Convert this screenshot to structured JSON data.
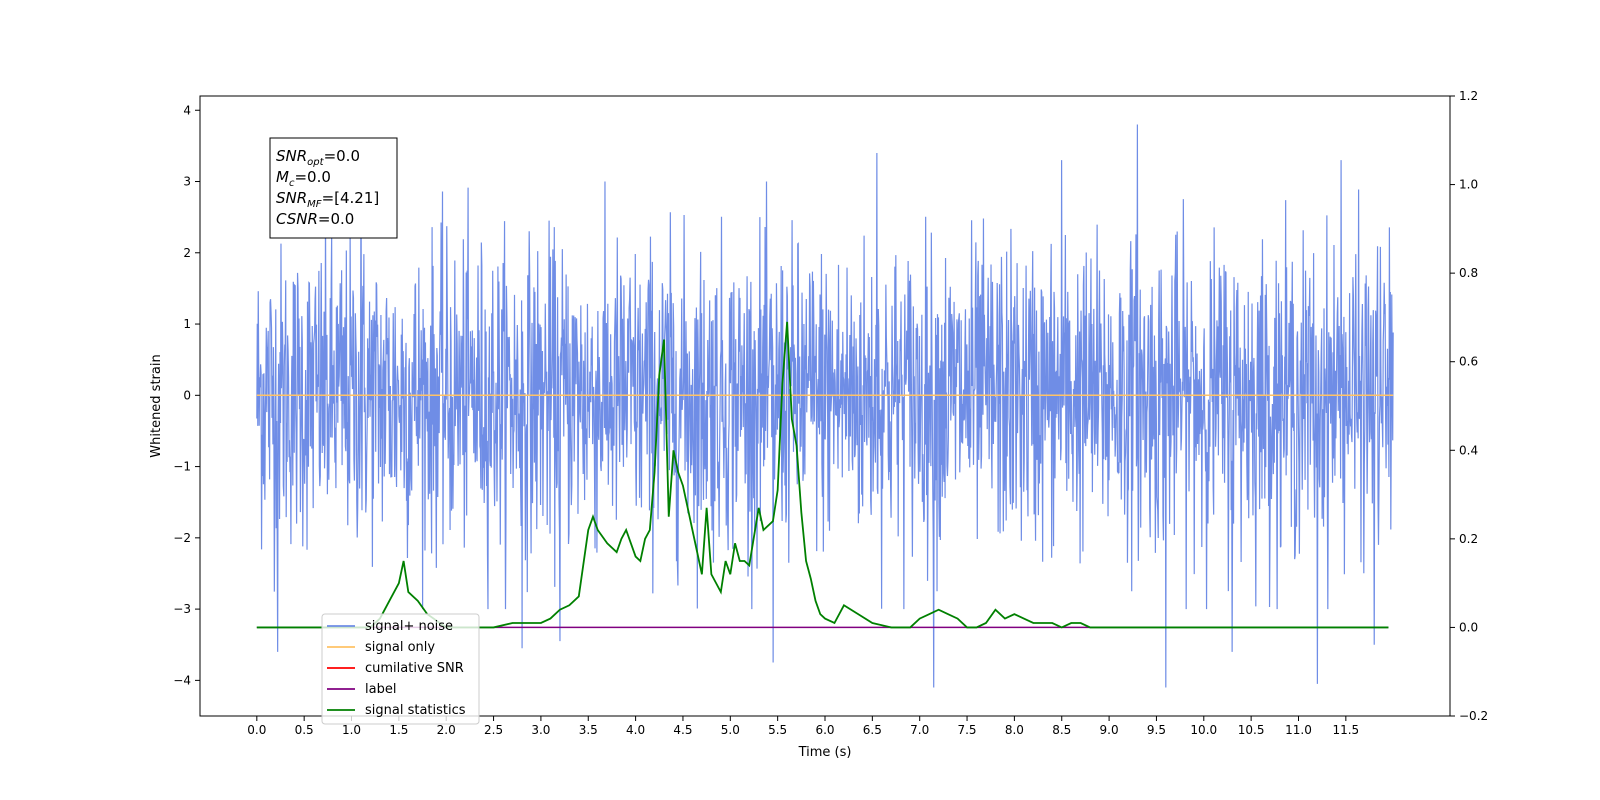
{
  "chart_data": {
    "type": "line",
    "title": "",
    "xlabel": "Time (s)",
    "ylabel": "Whitened strain",
    "xlim": [
      -0.6,
      12.6
    ],
    "ylim": [
      -4.5,
      4.2
    ],
    "y2lim": [
      -0.2,
      1.2
    ],
    "x_ticks": [
      0.0,
      0.5,
      1.0,
      1.5,
      2.0,
      2.5,
      3.0,
      3.5,
      4.0,
      4.5,
      5.0,
      5.5,
      6.0,
      6.5,
      7.0,
      7.5,
      8.0,
      8.5,
      9.0,
      9.5,
      10.0,
      10.5,
      11.0,
      11.5
    ],
    "x_tick_labels": [
      "0.0",
      "0.5",
      "1.0",
      "1.5",
      "2.0",
      "2.5",
      "3.0",
      "3.5",
      "4.0",
      "4.5",
      "5.0",
      "5.5",
      "6.0",
      "6.5",
      "7.0",
      "7.5",
      "8.0",
      "8.5",
      "9.0",
      "9.5",
      "10.0",
      "10.5",
      "11.0",
      "11.5"
    ],
    "y_ticks": [
      -4,
      -3,
      -2,
      -1,
      0,
      1,
      2,
      3,
      4
    ],
    "y_tick_labels": [
      "−4",
      "−3",
      "−2",
      "−1",
      "0",
      "1",
      "2",
      "3",
      "4"
    ],
    "y2_ticks": [
      -0.2,
      0.0,
      0.2,
      0.4,
      0.6,
      0.8,
      1.0,
      1.2
    ],
    "y2_tick_labels": [
      "−0.2",
      "0.0",
      "0.2",
      "0.4",
      "0.6",
      "0.8",
      "1.0",
      "1.2"
    ],
    "grid": false,
    "legend_position": "bottom-left",
    "legend": [
      {
        "label": "signal+ noise",
        "color": "#6f8de6"
      },
      {
        "label": "signal only",
        "color": "#ffc266"
      },
      {
        "label": "cumilative SNR",
        "color": "#ff0000"
      },
      {
        "label": "label",
        "color": "#800080"
      },
      {
        "label": "signal statistics",
        "color": "#008000"
      }
    ],
    "annotation": {
      "lines": [
        {
          "main": "SNR",
          "sub": "opt",
          "rest": "=0.0"
        },
        {
          "main": "M",
          "sub": "c",
          "rest": "=0.0"
        },
        {
          "main": "SNR",
          "sub": "MF",
          "rest": "=[4.21]"
        },
        {
          "main": "CSNR",
          "sub": "",
          "rest": "=0.0"
        }
      ]
    },
    "series": [
      {
        "name": "signal+ noise",
        "axis": "left",
        "color": "#6f8de6",
        "x_start": 0.0,
        "x_end": 12.0,
        "noise_std": 1.05,
        "spikes": [
          {
            "x": 0.22,
            "y": -3.6
          },
          {
            "x": 1.1,
            "y": 3.3
          },
          {
            "x": 2.8,
            "y": -3.55
          },
          {
            "x": 3.2,
            "y": -3.45
          },
          {
            "x": 5.45,
            "y": -3.75
          },
          {
            "x": 6.55,
            "y": 3.4
          },
          {
            "x": 7.15,
            "y": -4.1
          },
          {
            "x": 8.5,
            "y": 3.3
          },
          {
            "x": 9.3,
            "y": 3.8
          },
          {
            "x": 9.6,
            "y": -4.1
          },
          {
            "x": 10.3,
            "y": -3.6
          },
          {
            "x": 11.2,
            "y": -4.05
          },
          {
            "x": 11.45,
            "y": 3.3
          },
          {
            "x": 11.8,
            "y": -3.5
          }
        ]
      },
      {
        "name": "signal only",
        "axis": "left",
        "color": "#ffc266",
        "x": [
          0.0,
          12.0
        ],
        "y": [
          0.0,
          0.0
        ]
      },
      {
        "name": "label",
        "axis": "right",
        "color": "#800080",
        "x": [
          0.0,
          11.95
        ],
        "y": [
          0.0,
          0.0
        ]
      },
      {
        "name": "signal statistics",
        "axis": "right",
        "color": "#008000",
        "x": [
          0.0,
          0.1,
          1.0,
          1.2,
          1.3,
          1.4,
          1.5,
          1.55,
          1.6,
          1.7,
          1.8,
          2.0,
          2.5,
          2.7,
          2.8,
          2.9,
          3.0,
          3.1,
          3.2,
          3.3,
          3.4,
          3.5,
          3.55,
          3.6,
          3.7,
          3.8,
          3.85,
          3.9,
          4.0,
          4.05,
          4.1,
          4.15,
          4.2,
          4.25,
          4.3,
          4.35,
          4.4,
          4.45,
          4.5,
          4.55,
          4.6,
          4.7,
          4.75,
          4.8,
          4.9,
          4.95,
          5.0,
          5.05,
          5.1,
          5.15,
          5.2,
          5.3,
          5.35,
          5.45,
          5.5,
          5.55,
          5.6,
          5.65,
          5.7,
          5.75,
          5.8,
          5.85,
          5.9,
          5.95,
          6.0,
          6.1,
          6.2,
          6.35,
          6.5,
          6.7,
          6.9,
          7.0,
          7.1,
          7.2,
          7.3,
          7.4,
          7.5,
          7.6,
          7.7,
          7.8,
          7.9,
          8.0,
          8.1,
          8.2,
          8.3,
          8.4,
          8.5,
          8.6,
          8.7,
          8.8,
          8.9,
          9.0,
          9.3,
          9.5,
          10.0,
          11.0,
          11.95
        ],
        "y": [
          0.0,
          0.0,
          0.0,
          0.0,
          0.02,
          0.06,
          0.1,
          0.15,
          0.08,
          0.06,
          0.03,
          0.0,
          0.0,
          0.01,
          0.01,
          0.01,
          0.01,
          0.02,
          0.04,
          0.05,
          0.07,
          0.22,
          0.25,
          0.22,
          0.19,
          0.17,
          0.2,
          0.22,
          0.16,
          0.15,
          0.2,
          0.22,
          0.35,
          0.57,
          0.65,
          0.25,
          0.4,
          0.35,
          0.32,
          0.27,
          0.22,
          0.12,
          0.27,
          0.12,
          0.08,
          0.15,
          0.12,
          0.19,
          0.15,
          0.15,
          0.14,
          0.27,
          0.22,
          0.24,
          0.31,
          0.55,
          0.69,
          0.47,
          0.41,
          0.26,
          0.15,
          0.11,
          0.06,
          0.03,
          0.02,
          0.01,
          0.05,
          0.03,
          0.01,
          0.0,
          0.0,
          0.02,
          0.03,
          0.04,
          0.03,
          0.02,
          0.0,
          0.0,
          0.01,
          0.04,
          0.02,
          0.03,
          0.02,
          0.01,
          0.01,
          0.01,
          0.0,
          0.01,
          0.01,
          0.0,
          0.0,
          0.0,
          0.0,
          0.0,
          0.0,
          0.0,
          0.0
        ]
      }
    ]
  }
}
